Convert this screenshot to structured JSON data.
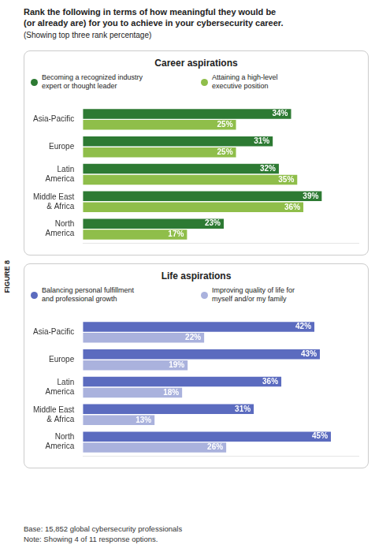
{
  "title": "Rank the following in terms of how meaningful they would be\n(or already are) for you to achieve in your cybersecurity career.",
  "subtitle": "(Showing top three rank percentage)",
  "annotations": [
    "FIGURE 8",
    "Base: 15,852 global cybersecurity professionals",
    "Note: Showing 4 of 11 response options."
  ],
  "chart_data": [
    {
      "type": "bar",
      "orientation": "horizontal",
      "title": "Career aspirations",
      "categories": [
        "Asia-Pacific",
        "Europe",
        "Latin\nAmerica",
        "Middle East\n& Africa",
        "North\nAmerica"
      ],
      "series": [
        {
          "name": "Becoming a recognized industry\nexpert or thought leader",
          "color": "#2d7a33",
          "values": [
            34,
            31,
            32,
            39,
            23
          ],
          "value_labels": [
            "34%",
            "31%",
            "32%",
            "39%",
            "23%"
          ]
        },
        {
          "name": "Attaining a high-level\nexecutive position",
          "color": "#8fbe4a",
          "values": [
            25,
            25,
            35,
            36,
            17
          ],
          "value_labels": [
            "25%",
            "25%",
            "35%",
            "36%",
            "17%"
          ]
        }
      ],
      "xlim": [
        0,
        45
      ],
      "xticks": [],
      "grid": false,
      "legend": "top",
      "data_labels": true,
      "tick_labels": "y"
    },
    {
      "type": "bar",
      "orientation": "horizontal",
      "title": "Life aspirations",
      "categories": [
        "Asia-Pacific",
        "Europe",
        "Latin\nAmerica",
        "Middle East\n& Africa",
        "North\nAmerica"
      ],
      "series": [
        {
          "name": "Balancing personal fulfillment\nand professional growth",
          "color": "#5b6bbf",
          "values": [
            42,
            43,
            36,
            31,
            45
          ],
          "value_labels": [
            "42%",
            "43%",
            "36%",
            "31%",
            "45%"
          ]
        },
        {
          "name": "Improving quality of life for\nmyself and/or my family",
          "color": "#aab2dd",
          "values": [
            22,
            19,
            18,
            13,
            26
          ],
          "value_labels": [
            "22%",
            "19%",
            "18%",
            "13%",
            "26%"
          ]
        }
      ],
      "xlim": [
        0,
        50
      ],
      "xticks": [],
      "grid": false,
      "legend": "top",
      "data_labels": true,
      "tick_labels": "y"
    }
  ]
}
